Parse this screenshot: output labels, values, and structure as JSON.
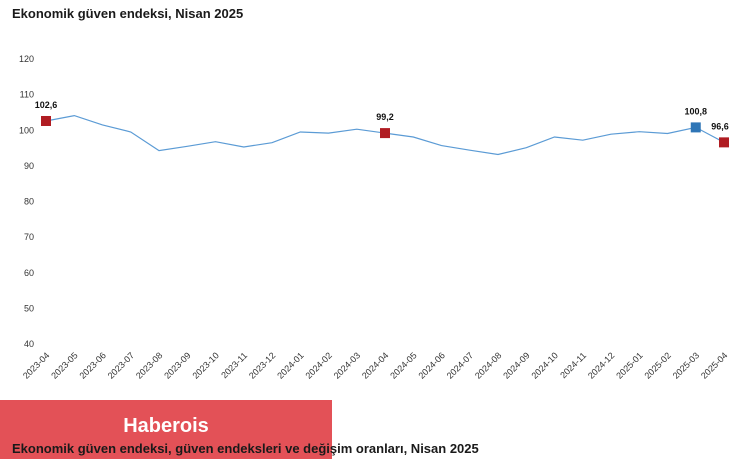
{
  "chart_data": {
    "type": "line",
    "title": "Ekonomik güven endeksi, Nisan 2025",
    "categories": [
      "2023-04",
      "2023-05",
      "2023-06",
      "2023-07",
      "2023-08",
      "2023-09",
      "2023-10",
      "2023-11",
      "2023-12",
      "2024-01",
      "2024-02",
      "2024-03",
      "2024-04",
      "2024-05",
      "2024-06",
      "2024-07",
      "2024-08",
      "2024-09",
      "2024-10",
      "2024-11",
      "2024-12",
      "2025-01",
      "2025-02",
      "2025-03",
      "2025-04"
    ],
    "values": [
      102.6,
      104.1,
      101.5,
      99.5,
      94.3,
      95.5,
      96.8,
      95.3,
      96.5,
      99.5,
      99.2,
      100.3,
      99.2,
      98.1,
      95.7,
      94.4,
      93.2,
      95.1,
      98.1,
      97.2,
      98.9,
      99.6,
      99.1,
      100.8,
      96.6
    ],
    "ylim": [
      40,
      120
    ],
    "yticks": [
      40,
      50,
      60,
      70,
      80,
      90,
      100,
      110,
      120
    ],
    "grid": false,
    "line_color": "#5b9bd5",
    "highlights": [
      {
        "index": 0,
        "label": "102,6",
        "color": "#b01c22"
      },
      {
        "index": 12,
        "label": "99,2",
        "color": "#b01c22"
      },
      {
        "index": 23,
        "label": "100,8",
        "color": "#2e75b6"
      },
      {
        "index": 24,
        "label": "96,6",
        "color": "#b01c22"
      }
    ]
  },
  "watermark": "Haberois",
  "caption": "Ekonomik güven endeksi, güven endeksleri ve değişim oranları, Nisan 2025"
}
